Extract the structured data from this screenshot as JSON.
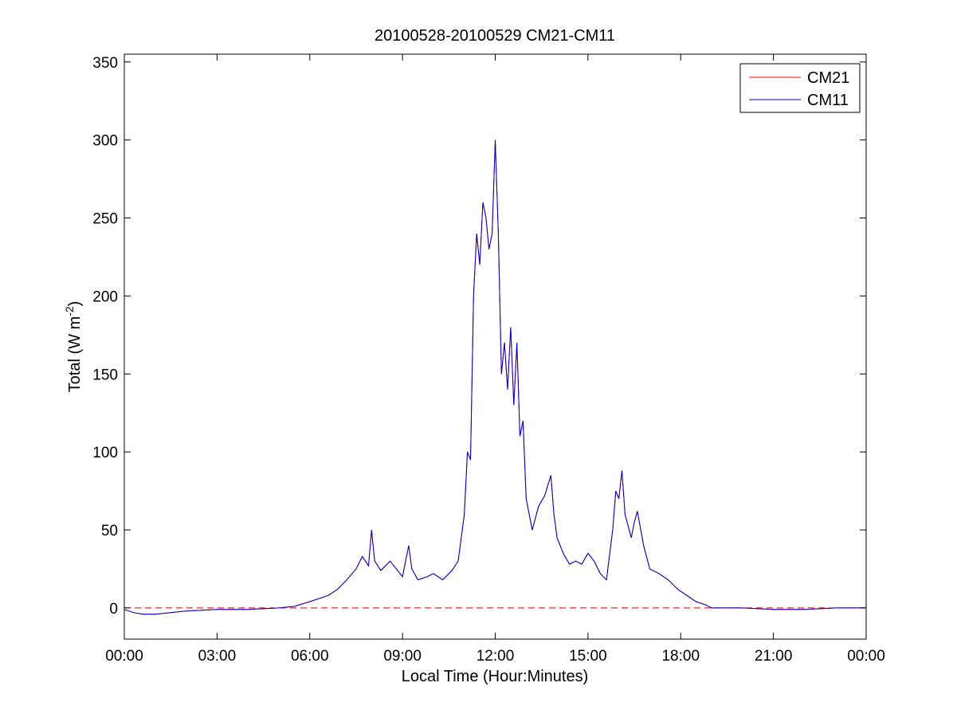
{
  "chart_data": {
    "type": "line",
    "title": "20100528-20100529 CM21-CM11",
    "xlabel": "Local Time (Hour:Minutes)",
    "ylabel": {
      "prefix": "Total (W m",
      "sup": "-2",
      "suffix": ")"
    },
    "xlim": [
      0,
      24
    ],
    "ylim": [
      -20,
      355
    ],
    "x_ticks": [
      0,
      3,
      6,
      9,
      12,
      15,
      18,
      21,
      24
    ],
    "x_tick_labels": [
      "00:00",
      "03:00",
      "06:00",
      "09:00",
      "12:00",
      "15:00",
      "18:00",
      "21:00",
      "00:00"
    ],
    "y_ticks": [
      0,
      50,
      100,
      150,
      200,
      250,
      300,
      350
    ],
    "y_tick_labels": [
      "0",
      "50",
      "100",
      "150",
      "200",
      "250",
      "300",
      "350"
    ],
    "grid": false,
    "legend_position": "top-right",
    "reference_line": {
      "y": 0,
      "style": "dashed",
      "color": "#cc0000"
    },
    "series": [
      {
        "name": "CM21",
        "color": "#ff0000",
        "x": [
          0,
          0.3,
          0.6,
          1.0,
          1.5,
          2.0,
          3.0,
          4.0,
          5.0,
          5.5,
          6.0,
          6.3,
          6.6,
          6.9,
          7.2,
          7.5,
          7.7,
          7.9,
          8.0,
          8.1,
          8.3,
          8.6,
          8.8,
          9.0,
          9.2,
          9.3,
          9.5,
          9.8,
          10.0,
          10.3,
          10.6,
          10.8,
          11.0,
          11.1,
          11.2,
          11.3,
          11.4,
          11.5,
          11.6,
          11.7,
          11.8,
          11.9,
          12.0,
          12.1,
          12.2,
          12.3,
          12.4,
          12.5,
          12.6,
          12.7,
          12.8,
          12.9,
          13.0,
          13.2,
          13.4,
          13.6,
          13.8,
          13.9,
          14.0,
          14.2,
          14.4,
          14.6,
          14.8,
          15.0,
          15.2,
          15.4,
          15.6,
          15.8,
          15.9,
          16.0,
          16.1,
          16.2,
          16.4,
          16.5,
          16.6,
          16.8,
          17.0,
          17.3,
          17.6,
          17.9,
          18.2,
          18.5,
          18.8,
          19.0,
          19.5,
          20.0,
          21.0,
          22.0,
          23.0,
          24.0
        ],
        "values": [
          -1,
          -3,
          -4,
          -4,
          -3,
          -2,
          -1,
          -1,
          0,
          1,
          4,
          6,
          8,
          12,
          18,
          25,
          33,
          27,
          50,
          30,
          24,
          30,
          25,
          20,
          40,
          25,
          18,
          20,
          22,
          18,
          24,
          30,
          60,
          100,
          95,
          200,
          240,
          220,
          260,
          250,
          230,
          240,
          300,
          240,
          150,
          170,
          140,
          180,
          130,
          170,
          110,
          120,
          70,
          50,
          65,
          72,
          85,
          60,
          45,
          35,
          28,
          30,
          28,
          35,
          30,
          22,
          18,
          50,
          75,
          70,
          88,
          60,
          45,
          55,
          62,
          40,
          25,
          22,
          18,
          12,
          8,
          4,
          2,
          0,
          0,
          0,
          -1,
          -1,
          0,
          0
        ]
      },
      {
        "name": "CM11",
        "color": "#0000cc",
        "x": [
          0,
          0.3,
          0.6,
          1.0,
          1.5,
          2.0,
          3.0,
          4.0,
          5.0,
          5.5,
          6.0,
          6.3,
          6.6,
          6.9,
          7.2,
          7.5,
          7.7,
          7.9,
          8.0,
          8.1,
          8.3,
          8.6,
          8.8,
          9.0,
          9.2,
          9.3,
          9.5,
          9.8,
          10.0,
          10.3,
          10.6,
          10.8,
          11.0,
          11.1,
          11.2,
          11.3,
          11.4,
          11.5,
          11.6,
          11.7,
          11.8,
          11.9,
          12.0,
          12.1,
          12.2,
          12.3,
          12.4,
          12.5,
          12.6,
          12.7,
          12.8,
          12.9,
          13.0,
          13.2,
          13.4,
          13.6,
          13.8,
          13.9,
          14.0,
          14.2,
          14.4,
          14.6,
          14.8,
          15.0,
          15.2,
          15.4,
          15.6,
          15.8,
          15.9,
          16.0,
          16.1,
          16.2,
          16.4,
          16.5,
          16.6,
          16.8,
          17.0,
          17.3,
          17.6,
          17.9,
          18.2,
          18.5,
          18.8,
          19.0,
          19.5,
          20.0,
          21.0,
          22.0,
          23.0,
          24.0
        ],
        "values": [
          -1,
          -3,
          -4,
          -4,
          -3,
          -2,
          -1,
          -1,
          0,
          1,
          4,
          6,
          8,
          12,
          18,
          25,
          33,
          27,
          50,
          30,
          24,
          30,
          25,
          20,
          40,
          25,
          18,
          20,
          22,
          18,
          24,
          30,
          60,
          100,
          95,
          200,
          240,
          220,
          260,
          250,
          230,
          240,
          300,
          240,
          150,
          170,
          140,
          180,
          130,
          170,
          110,
          120,
          70,
          50,
          65,
          72,
          85,
          60,
          45,
          35,
          28,
          30,
          28,
          35,
          30,
          22,
          18,
          50,
          75,
          70,
          88,
          60,
          45,
          55,
          62,
          40,
          25,
          22,
          18,
          12,
          8,
          4,
          2,
          0,
          0,
          0,
          -1,
          -1,
          0,
          0
        ]
      }
    ]
  }
}
